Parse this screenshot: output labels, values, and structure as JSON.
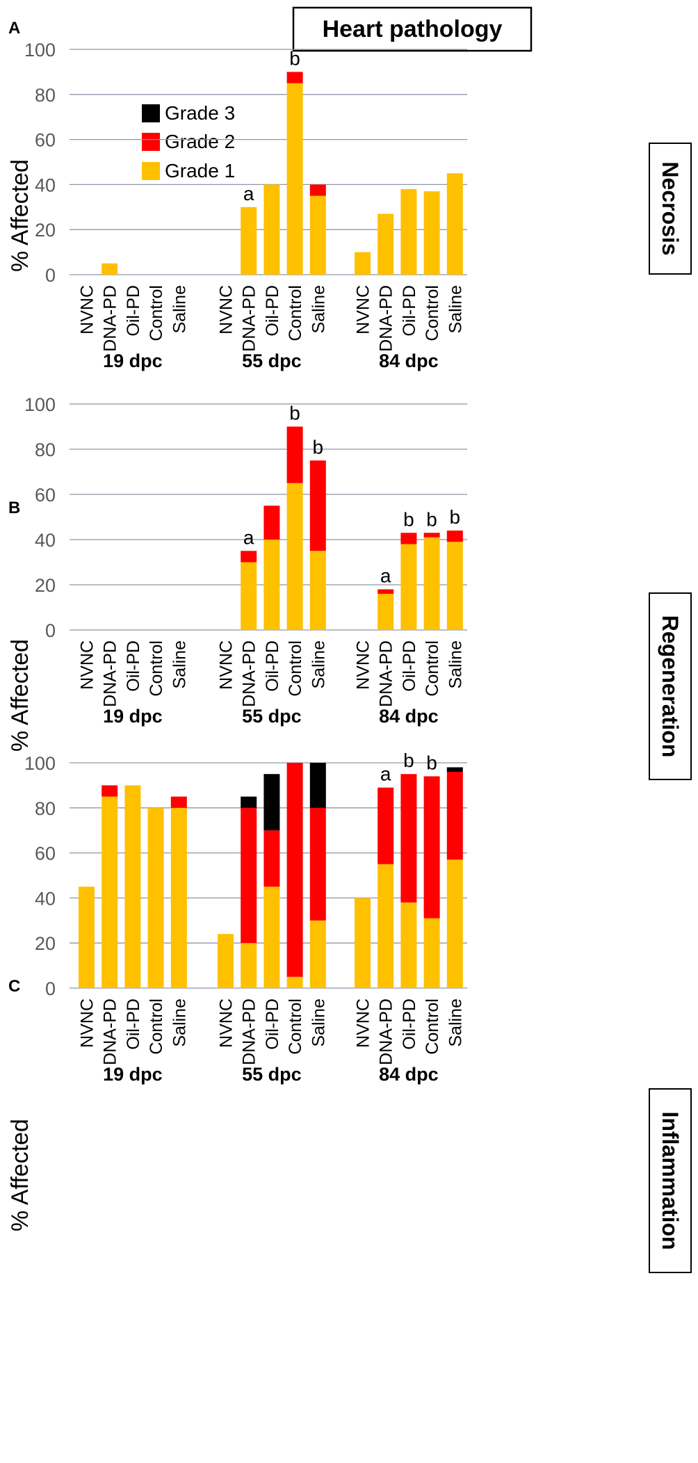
{
  "figure_title": "Heart pathology",
  "colors": {
    "grade1": "#FFC000",
    "grade2": "#FF0000",
    "grade3": "#000000",
    "grid": "#8C96A8",
    "axis_text": "#595959"
  },
  "chart_data": [
    {
      "type": "bar",
      "stacked": true,
      "panel": "A",
      "panel_label": "Necrosis",
      "ylabel": "% Affected",
      "ylim": [
        0,
        100
      ],
      "yticks": [
        0,
        20,
        40,
        60,
        80,
        100
      ],
      "legend": [
        "Grade 3",
        "Grade 2",
        "Grade 1"
      ],
      "group_labels": [
        "19 dpc",
        "55 dpc",
        "84 dpc"
      ],
      "categories": [
        "NVNC",
        "DNA-PD",
        "Oil-PD",
        "Control",
        "Saline"
      ],
      "series": [
        {
          "name": "Grade 1",
          "values": [
            [
              0,
              5,
              0,
              0,
              0
            ],
            [
              0,
              30,
              40,
              85,
              35
            ],
            [
              10,
              27,
              38,
              37,
              45
            ]
          ]
        },
        {
          "name": "Grade 2",
          "values": [
            [
              0,
              0,
              0,
              0,
              0
            ],
            [
              0,
              0,
              0,
              5,
              5
            ],
            [
              0,
              0,
              0,
              0,
              0
            ]
          ]
        },
        {
          "name": "Grade 3",
          "values": [
            [
              0,
              0,
              0,
              0,
              0
            ],
            [
              0,
              0,
              0,
              0,
              0
            ],
            [
              0,
              0,
              0,
              0,
              0
            ]
          ]
        }
      ],
      "annotations": [
        [
          "",
          "",
          "",
          "",
          ""
        ],
        [
          "",
          "a",
          "",
          "b",
          ""
        ],
        [
          "",
          "",
          "",
          "",
          ""
        ]
      ]
    },
    {
      "type": "bar",
      "stacked": true,
      "panel": "B",
      "panel_label": "Regeneration",
      "ylabel": "% Affected",
      "ylim": [
        0,
        100
      ],
      "yticks": [
        0,
        20,
        40,
        60,
        80,
        100
      ],
      "group_labels": [
        "19 dpc",
        "55 dpc",
        "84 dpc"
      ],
      "categories": [
        "NVNC",
        "DNA-PD",
        "Oil-PD",
        "Control",
        "Saline"
      ],
      "series": [
        {
          "name": "Grade 1",
          "values": [
            [
              0,
              0,
              0,
              0,
              0
            ],
            [
              0,
              30,
              40,
              65,
              35
            ],
            [
              0,
              16,
              38,
              41,
              39
            ]
          ]
        },
        {
          "name": "Grade 2",
          "values": [
            [
              0,
              0,
              0,
              0,
              0
            ],
            [
              0,
              5,
              15,
              25,
              40
            ],
            [
              0,
              2,
              5,
              2,
              5
            ]
          ]
        },
        {
          "name": "Grade 3",
          "values": [
            [
              0,
              0,
              0,
              0,
              0
            ],
            [
              0,
              0,
              0,
              0,
              0
            ],
            [
              0,
              0,
              0,
              0,
              0
            ]
          ]
        }
      ],
      "annotations": [
        [
          "",
          "",
          "",
          "",
          ""
        ],
        [
          "",
          "a",
          "",
          "b",
          "b"
        ],
        [
          "",
          "a",
          "b",
          "b",
          "b"
        ]
      ]
    },
    {
      "type": "bar",
      "stacked": true,
      "panel": "C",
      "panel_label": "Inflammation",
      "ylabel": "% Affected",
      "ylim": [
        0,
        100
      ],
      "yticks": [
        0,
        20,
        40,
        60,
        80,
        100
      ],
      "group_labels": [
        "19 dpc",
        "55 dpc",
        "84 dpc"
      ],
      "categories": [
        "NVNC",
        "DNA-PD",
        "Oil-PD",
        "Control",
        "Saline"
      ],
      "series": [
        {
          "name": "Grade 1",
          "values": [
            [
              45,
              85,
              90,
              80,
              80
            ],
            [
              24,
              20,
              45,
              5,
              30
            ],
            [
              40,
              55,
              38,
              31,
              57
            ]
          ]
        },
        {
          "name": "Grade 2",
          "values": [
            [
              0,
              5,
              0,
              0,
              5
            ],
            [
              0,
              60,
              25,
              95,
              50
            ],
            [
              0,
              34,
              57,
              63,
              39
            ]
          ]
        },
        {
          "name": "Grade 3",
          "values": [
            [
              0,
              0,
              0,
              0,
              0
            ],
            [
              0,
              5,
              25,
              0,
              20
            ],
            [
              0,
              0,
              0,
              0,
              2
            ]
          ]
        }
      ],
      "annotations": [
        [
          "",
          "",
          "",
          "",
          ""
        ],
        [
          "",
          "",
          "",
          "",
          ""
        ],
        [
          "",
          "a",
          "b",
          "b",
          ""
        ]
      ]
    }
  ]
}
